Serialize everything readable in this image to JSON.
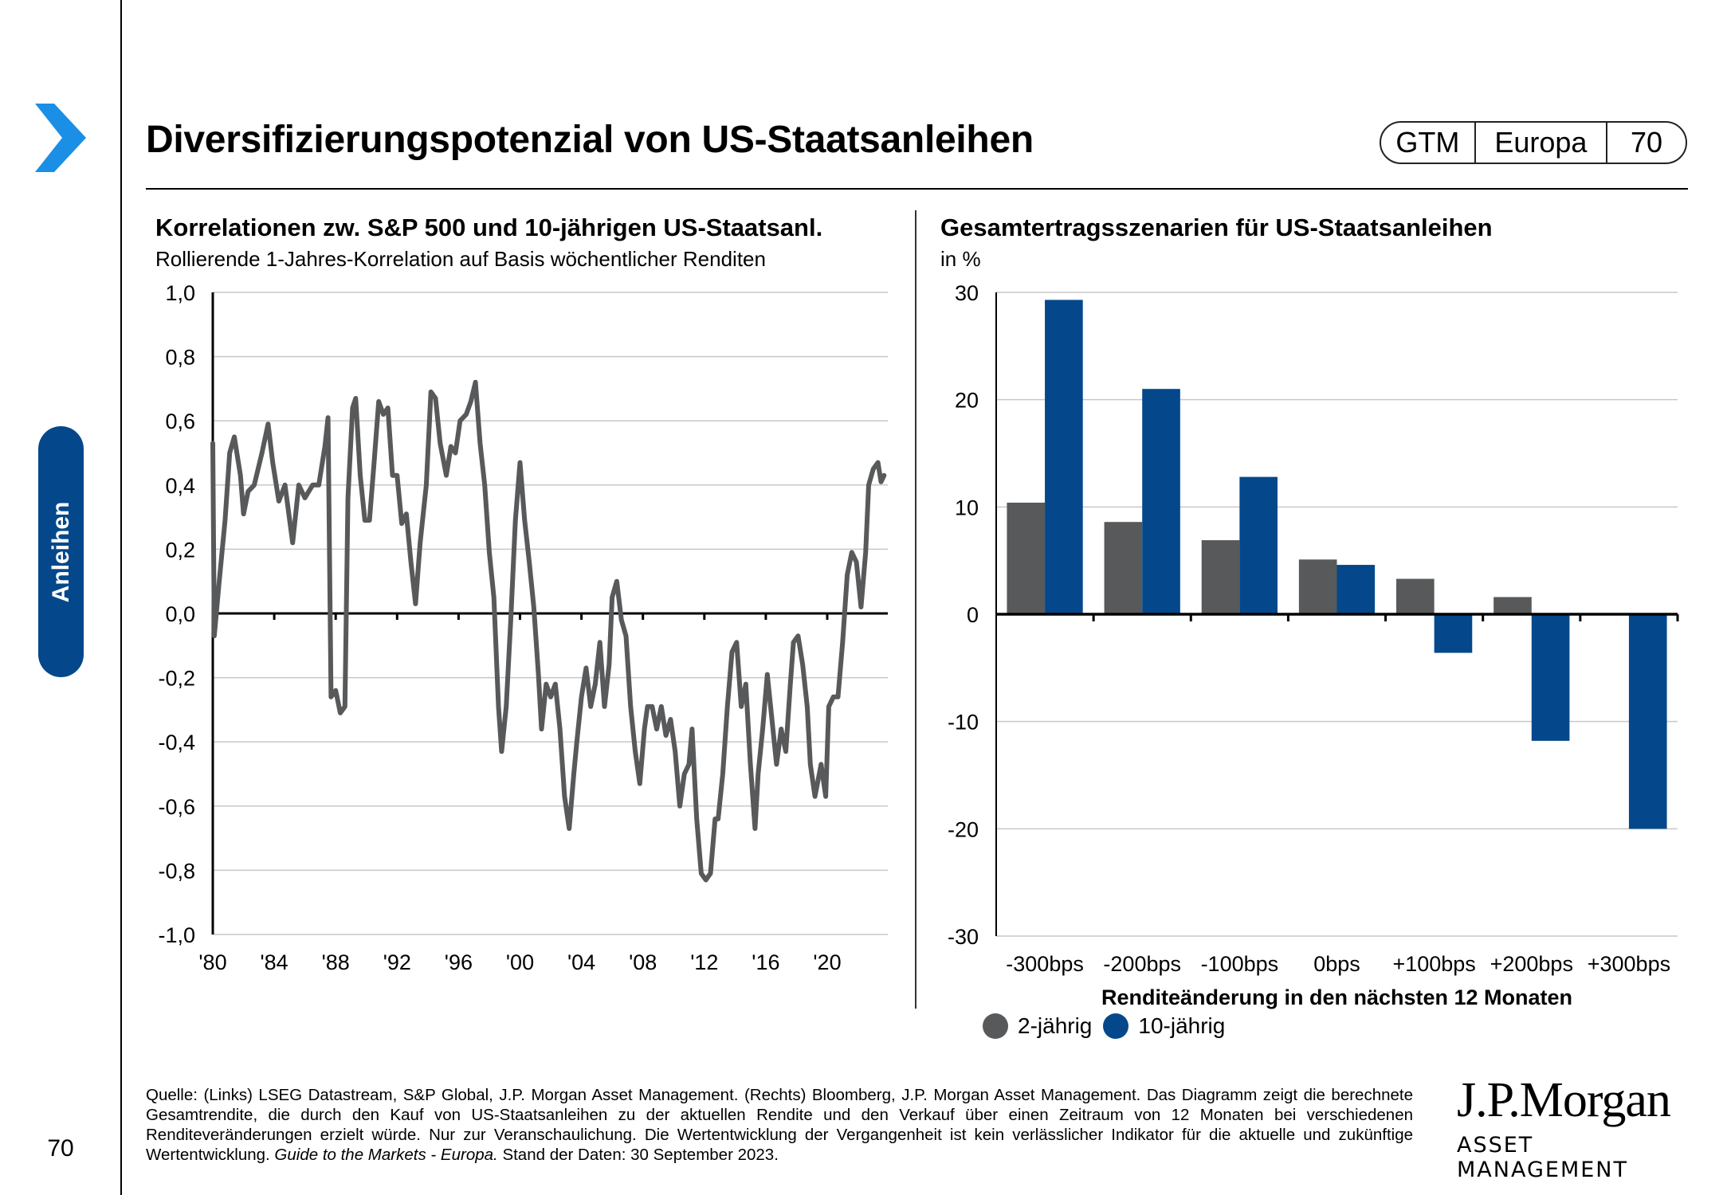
{
  "page": {
    "title": "Diversifizierungspotenzial von US-Staatsanleihen",
    "section": "Anleihen",
    "page_number": "70",
    "badge": [
      "GTM",
      "Europa",
      "70"
    ]
  },
  "colors": {
    "accent_blue": "#04488b",
    "chevron_blue": "#1b8fe6",
    "gray_series": "#57595b",
    "blue_series": "#04488b",
    "gridline": "#c8c8c8"
  },
  "left_panel": {
    "title": "Korrelationen zw. S&P 500 und 10-jährigen US-Staatsanl.",
    "subtitle": "Rollierende 1-Jahres-Korrelation auf Basis wöchentlicher Renditen"
  },
  "right_panel": {
    "title": "Gesamtertragsszenarien für US-Staatsanleihen",
    "subtitle": "in %",
    "legend": [
      {
        "label": "2-jährig",
        "color": "#57595b"
      },
      {
        "label": "10-jährig",
        "color": "#04488b"
      }
    ]
  },
  "chart_data": [
    {
      "type": "line",
      "title": "Korrelationen zw. S&P 500 und 10-jährigen US-Staatsanl.",
      "subtitle": "Rollierende 1-Jahres-Korrelation auf Basis wöchentlicher Renditen",
      "xlabel": "",
      "ylabel": "",
      "xlim": [
        1980,
        2024
      ],
      "ylim": [
        -1.0,
        1.0
      ],
      "yticks": [
        1.0,
        0.8,
        0.6,
        0.4,
        0.2,
        0.0,
        -0.2,
        -0.4,
        -0.6,
        -0.8,
        -1.0
      ],
      "ytick_labels": [
        "1,0",
        "0,8",
        "0,6",
        "0,4",
        "0,2",
        "0,0",
        "-0,2",
        "-0,4",
        "-0,6",
        "-0,8",
        "-1,0"
      ],
      "xticks": [
        1980,
        1984,
        1988,
        1992,
        1996,
        2000,
        2004,
        2008,
        2012,
        2016,
        2020
      ],
      "xtick_labels": [
        "'80",
        "'84",
        "'88",
        "'92",
        "'96",
        "'00",
        "'04",
        "'08",
        "'12",
        "'16",
        "'20"
      ],
      "grid": true,
      "series": [
        {
          "name": "Korrelation S&P 500 / 10J US-Staatsanleihen",
          "color": "#57595b",
          "x": [
            1980.0,
            1980.1,
            1980.4,
            1980.8,
            1981.1,
            1981.4,
            1981.8,
            1982.0,
            1982.3,
            1982.7,
            1983.2,
            1983.6,
            1983.9,
            1984.3,
            1984.7,
            1985.2,
            1985.6,
            1986.0,
            1986.5,
            1986.9,
            1987.3,
            1987.5,
            1987.7,
            1988.0,
            1988.3,
            1988.6,
            1988.8,
            1989.1,
            1989.3,
            1989.6,
            1989.9,
            1990.2,
            1990.5,
            1990.8,
            1991.1,
            1991.4,
            1991.7,
            1992.0,
            1992.3,
            1992.6,
            1992.9,
            1993.2,
            1993.5,
            1993.9,
            1994.2,
            1994.5,
            1994.8,
            1995.2,
            1995.5,
            1995.8,
            1996.1,
            1996.5,
            1996.8,
            1997.1,
            1997.4,
            1997.7,
            1998.0,
            1998.3,
            1998.6,
            1998.8,
            1999.1,
            1999.4,
            1999.7,
            2000.0,
            2000.3,
            2000.6,
            2000.9,
            2001.2,
            2001.4,
            2001.7,
            2002.0,
            2002.3,
            2002.6,
            2002.9,
            2003.2,
            2003.5,
            2003.7,
            2004.0,
            2004.3,
            2004.6,
            2004.9,
            2005.2,
            2005.5,
            2005.8,
            2006.0,
            2006.3,
            2006.6,
            2006.9,
            2007.2,
            2007.5,
            2007.8,
            2008.1,
            2008.3,
            2008.6,
            2008.9,
            2009.2,
            2009.5,
            2009.8,
            2010.1,
            2010.4,
            2010.7,
            2011.0,
            2011.2,
            2011.5,
            2011.8,
            2012.1,
            2012.4,
            2012.7,
            2012.9,
            2013.2,
            2013.5,
            2013.8,
            2014.1,
            2014.4,
            2014.7,
            2015.0,
            2015.3,
            2015.5,
            2015.8,
            2016.1,
            2016.4,
            2016.7,
            2017.0,
            2017.3,
            2017.6,
            2017.8,
            2018.1,
            2018.4,
            2018.7,
            2018.9,
            2019.2,
            2019.6,
            2019.9,
            2020.1,
            2020.4,
            2020.7,
            2021.0,
            2021.3,
            2021.6,
            2021.9,
            2022.2,
            2022.5,
            2022.7,
            2023.0,
            2023.3,
            2023.5,
            2023.7
          ],
          "y": [
            0.53,
            -0.07,
            0.09,
            0.29,
            0.5,
            0.55,
            0.43,
            0.31,
            0.38,
            0.4,
            0.5,
            0.59,
            0.47,
            0.35,
            0.4,
            0.22,
            0.4,
            0.36,
            0.4,
            0.4,
            0.52,
            0.61,
            -0.26,
            -0.24,
            -0.31,
            -0.29,
            0.36,
            0.64,
            0.67,
            0.43,
            0.29,
            0.29,
            0.47,
            0.66,
            0.62,
            0.64,
            0.43,
            0.43,
            0.28,
            0.31,
            0.16,
            0.03,
            0.22,
            0.4,
            0.69,
            0.67,
            0.53,
            0.43,
            0.52,
            0.5,
            0.6,
            0.62,
            0.66,
            0.72,
            0.53,
            0.4,
            0.19,
            0.05,
            -0.29,
            -0.43,
            -0.29,
            -0.02,
            0.29,
            0.47,
            0.29,
            0.16,
            0.02,
            -0.19,
            -0.36,
            -0.22,
            -0.26,
            -0.22,
            -0.36,
            -0.57,
            -0.67,
            -0.5,
            -0.4,
            -0.26,
            -0.17,
            -0.29,
            -0.22,
            -0.09,
            -0.29,
            -0.16,
            0.05,
            0.1,
            -0.02,
            -0.07,
            -0.29,
            -0.43,
            -0.53,
            -0.36,
            -0.29,
            -0.29,
            -0.36,
            -0.29,
            -0.38,
            -0.33,
            -0.43,
            -0.6,
            -0.5,
            -0.47,
            -0.36,
            -0.64,
            -0.81,
            -0.83,
            -0.81,
            -0.64,
            -0.64,
            -0.5,
            -0.29,
            -0.12,
            -0.09,
            -0.29,
            -0.22,
            -0.47,
            -0.67,
            -0.5,
            -0.36,
            -0.19,
            -0.33,
            -0.47,
            -0.36,
            -0.43,
            -0.22,
            -0.09,
            -0.07,
            -0.16,
            -0.29,
            -0.47,
            -0.57,
            -0.47,
            -0.57,
            -0.29,
            -0.26,
            -0.26,
            -0.09,
            0.12,
            0.19,
            0.16,
            0.02,
            0.19,
            0.4,
            0.45,
            0.47,
            0.41,
            0.43
          ]
        }
      ]
    },
    {
      "type": "bar",
      "title": "Gesamtertragsszenarien für US-Staatsanleihen",
      "subtitle": "in %",
      "xlabel": "Renditeänderung in den nächsten 12 Monaten",
      "ylabel": "",
      "ylim": [
        -30,
        30
      ],
      "yticks": [
        30,
        20,
        10,
        0,
        -10,
        -20,
        -30
      ],
      "grid": true,
      "legend_position": "bottom-left",
      "categories": [
        "-300bps",
        "-200bps",
        "-100bps",
        "0bps",
        "+100bps",
        "+200bps",
        "+300bps"
      ],
      "series": [
        {
          "name": "2-jährig",
          "color": "#57595b",
          "values": [
            10.4,
            8.6,
            6.9,
            5.1,
            3.3,
            1.6,
            null
          ]
        },
        {
          "name": "10-jährig",
          "color": "#04488b",
          "values": [
            29.3,
            21.0,
            12.8,
            4.6,
            -3.6,
            -11.8,
            -20.0
          ]
        }
      ]
    }
  ],
  "footnote": {
    "text": "Quelle: (Links) LSEG Datastream, S&P Global, J.P. Morgan Asset Management. (Rechts) Bloomberg, J.P. Morgan Asset Management. Das Diagramm zeigt die berechnete Gesamtrendite, die durch den Kauf von US-Staatsanleihen zu der aktuellen Rendite und den Verkauf über einen Zeitraum von 12 Monaten bei verschiedenen Renditeveränderungen erzielt würde. Nur zur Veranschaulichung. Die Wertentwicklung der Vergangenheit ist kein verlässlicher Indikator für die aktuelle und zukünftige Wertentwicklung.",
    "italic": "Guide to the Markets - Europa.",
    "date": "Stand der Daten: 30 September 2023."
  },
  "logo": {
    "main": "J.P.Morgan",
    "sub": "ASSET MANAGEMENT"
  }
}
